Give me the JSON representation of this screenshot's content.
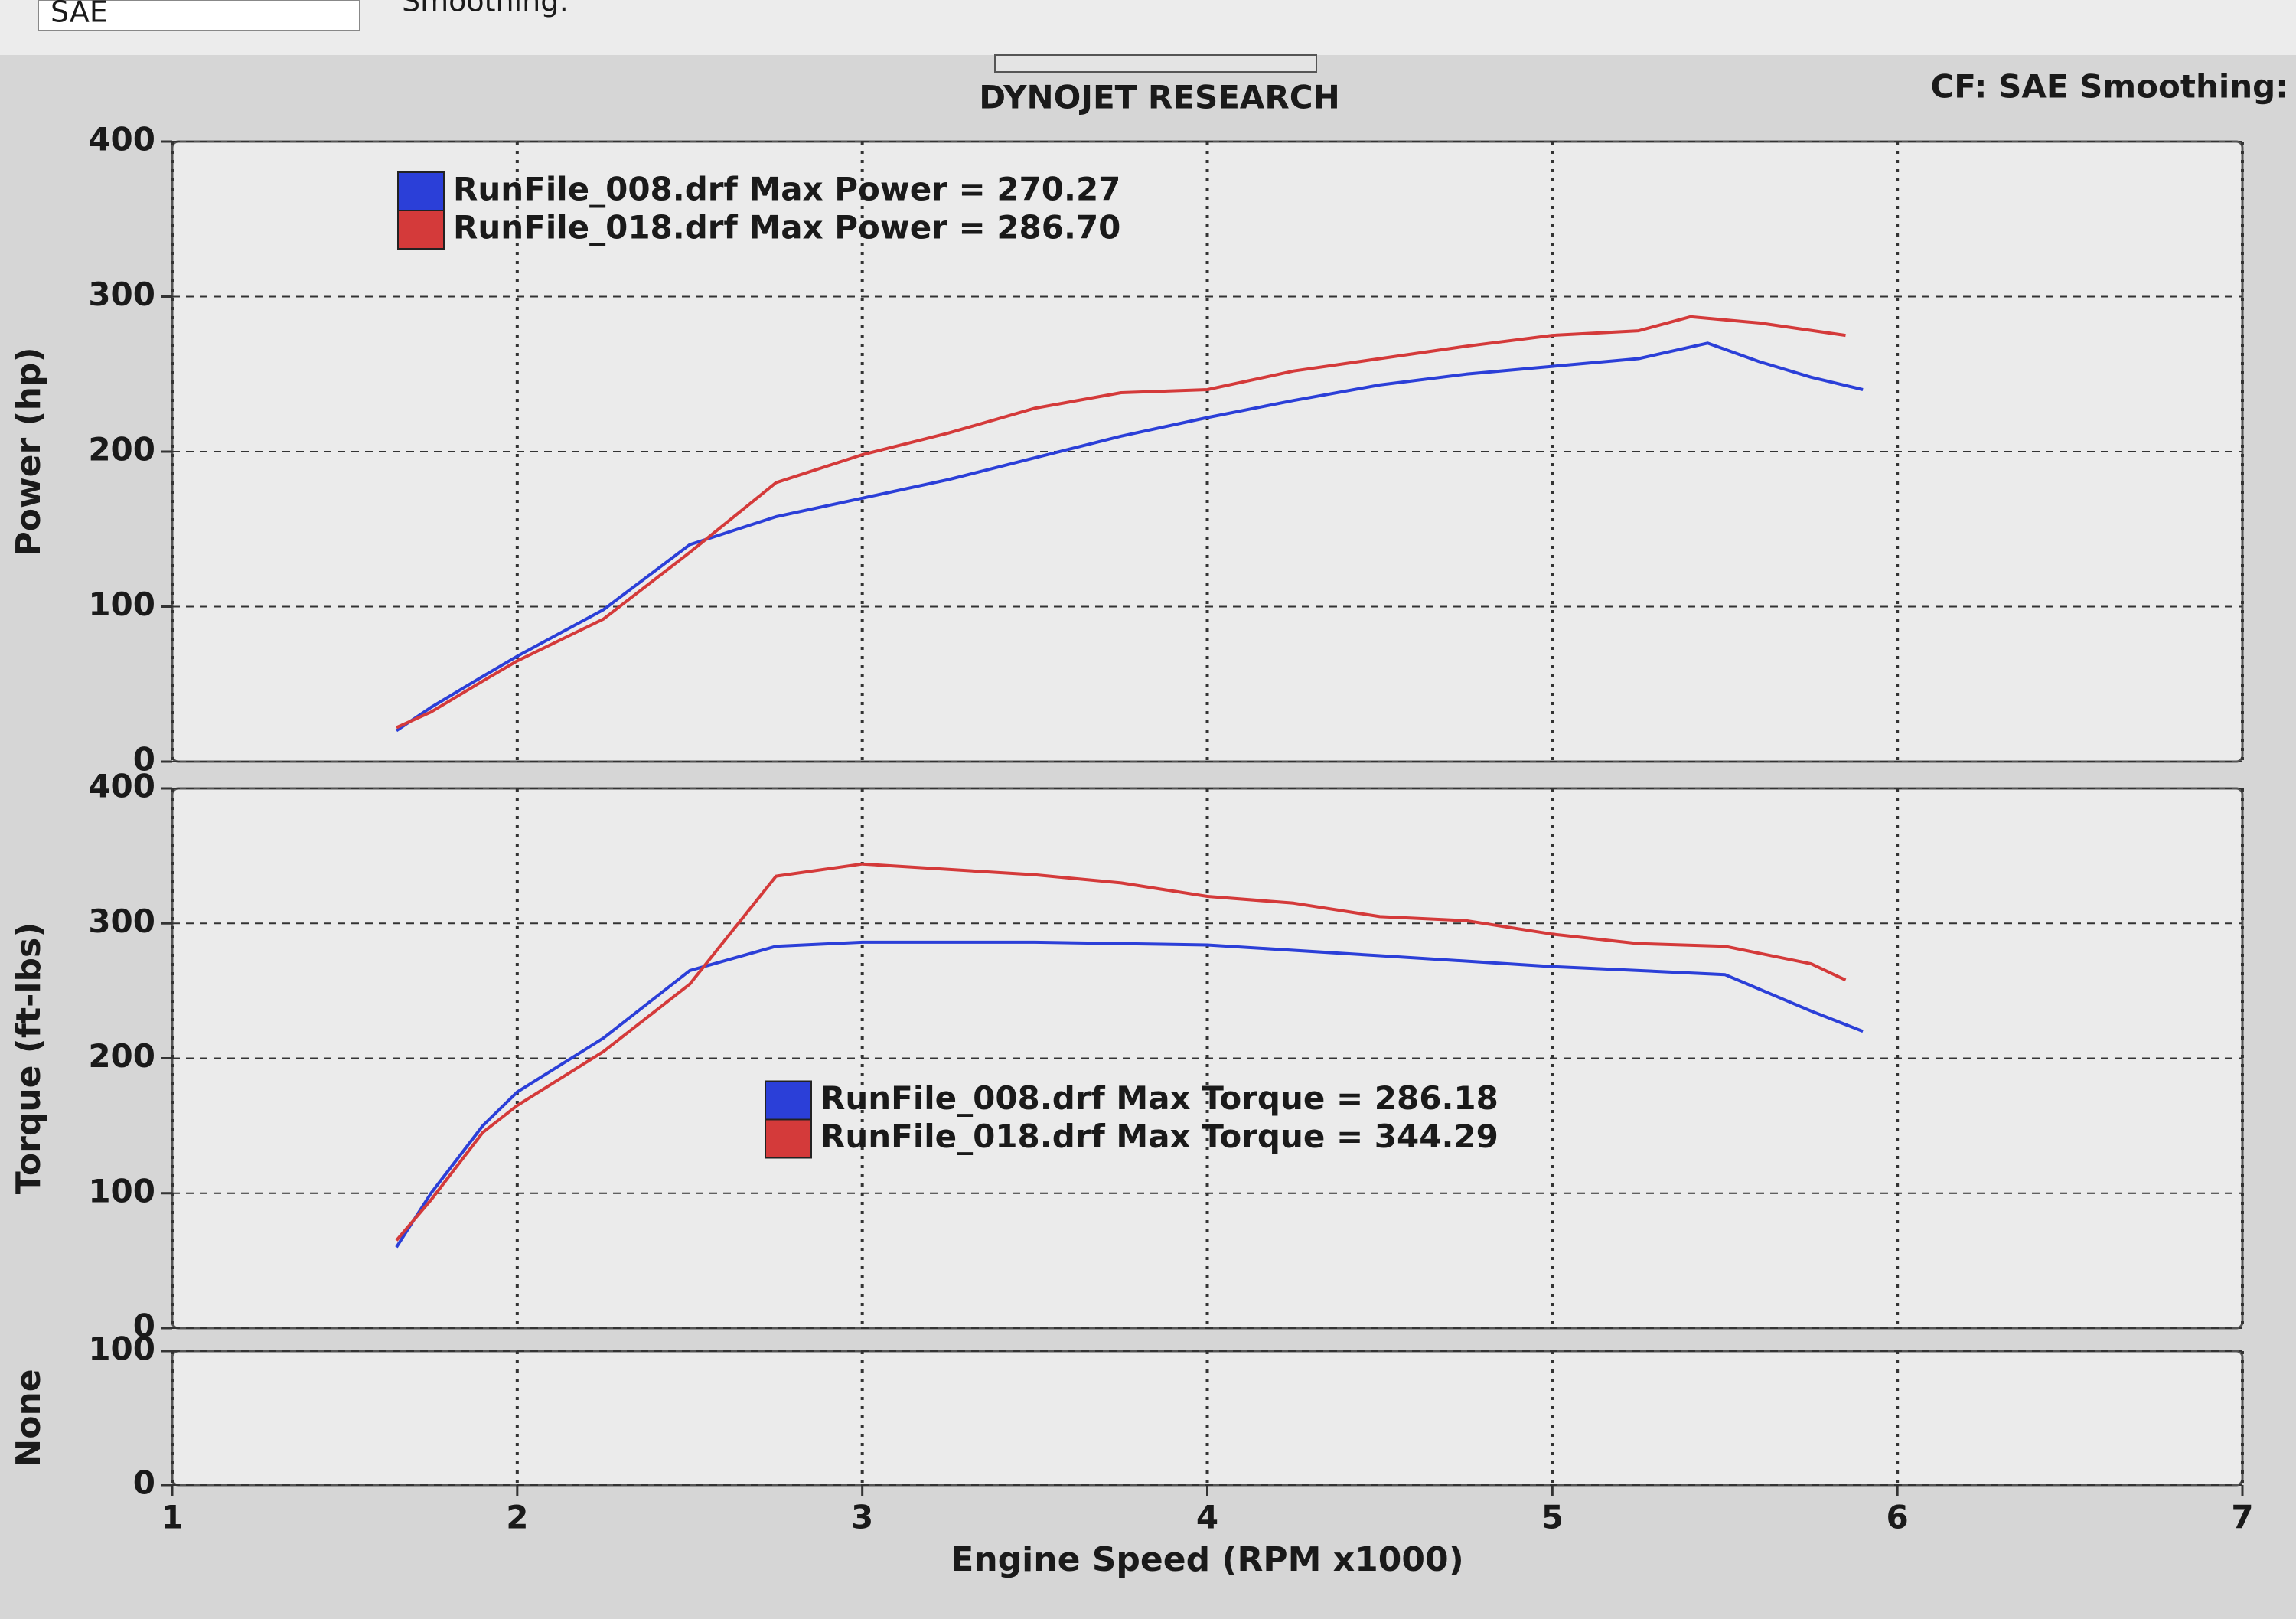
{
  "toolbar": {
    "cf_select": "SAE",
    "smoothing_label": "Smoothing:"
  },
  "chart_data": [
    {
      "type": "line",
      "title": "DYNOJET RESEARCH",
      "subtitle": "CF: SAE  Smoothing:",
      "ylabel": "Power (hp)",
      "ylim": [
        0,
        400
      ],
      "yticks": [
        0,
        100,
        200,
        300,
        400
      ],
      "xlim": [
        1,
        7
      ],
      "xticks": [
        1,
        2,
        3,
        4,
        5,
        6,
        7
      ],
      "grid": true,
      "legend": "upper left",
      "series": [
        {
          "name": "RunFile_008.drf Max Power = 270.27",
          "color": "#2b3fd8",
          "x": [
            1.65,
            1.75,
            1.9,
            2.0,
            2.25,
            2.5,
            2.75,
            3.0,
            3.25,
            3.5,
            3.75,
            4.0,
            4.25,
            4.5,
            4.75,
            5.0,
            5.25,
            5.45,
            5.6,
            5.75,
            5.9
          ],
          "values": [
            20,
            35,
            55,
            68,
            98,
            140,
            158,
            170,
            182,
            196,
            210,
            222,
            233,
            243,
            250,
            255,
            260,
            270,
            258,
            248,
            240
          ]
        },
        {
          "name": "RunFile_018.drf Max Power = 286.70",
          "color": "#d43a3a",
          "x": [
            1.65,
            1.75,
            1.9,
            2.0,
            2.25,
            2.5,
            2.75,
            3.0,
            3.25,
            3.5,
            3.75,
            4.0,
            4.25,
            4.5,
            4.75,
            5.0,
            5.25,
            5.4,
            5.6,
            5.85
          ],
          "values": [
            22,
            32,
            52,
            65,
            92,
            135,
            180,
            198,
            212,
            228,
            238,
            240,
            252,
            260,
            268,
            275,
            278,
            287,
            283,
            275
          ]
        }
      ]
    },
    {
      "type": "line",
      "ylabel": "Torque (ft-lbs)",
      "ylim": [
        0,
        400
      ],
      "yticks": [
        0,
        100,
        200,
        300,
        400
      ],
      "xlim": [
        1,
        7
      ],
      "xticks": [
        1,
        2,
        3,
        4,
        5,
        6,
        7
      ],
      "grid": true,
      "legend": "center",
      "series": [
        {
          "name": "RunFile_008.drf Max Torque = 286.18",
          "color": "#2b3fd8",
          "x": [
            1.65,
            1.75,
            1.9,
            2.0,
            2.25,
            2.5,
            2.75,
            3.0,
            3.5,
            4.0,
            4.5,
            5.0,
            5.25,
            5.5,
            5.75,
            5.9
          ],
          "values": [
            60,
            100,
            150,
            175,
            215,
            265,
            283,
            286,
            286,
            284,
            276,
            268,
            265,
            262,
            235,
            220
          ]
        },
        {
          "name": "RunFile_018.drf Max Torque = 344.29",
          "color": "#d43a3a",
          "x": [
            1.65,
            1.75,
            1.9,
            2.0,
            2.25,
            2.5,
            2.75,
            3.0,
            3.25,
            3.5,
            3.75,
            4.0,
            4.25,
            4.5,
            4.75,
            5.0,
            5.25,
            5.5,
            5.75,
            5.85
          ],
          "values": [
            65,
            95,
            145,
            165,
            205,
            255,
            335,
            344,
            340,
            336,
            330,
            320,
            315,
            305,
            302,
            292,
            285,
            283,
            270,
            258
          ]
        }
      ]
    },
    {
      "type": "line",
      "ylabel": "None",
      "ylim": [
        0,
        100
      ],
      "yticks": [
        0,
        100
      ],
      "xlim": [
        1,
        7
      ],
      "xticks": [
        1,
        2,
        3,
        4,
        5,
        6,
        7
      ],
      "grid": true,
      "xlabel": "Engine Speed (RPM x1000)",
      "series": []
    }
  ]
}
